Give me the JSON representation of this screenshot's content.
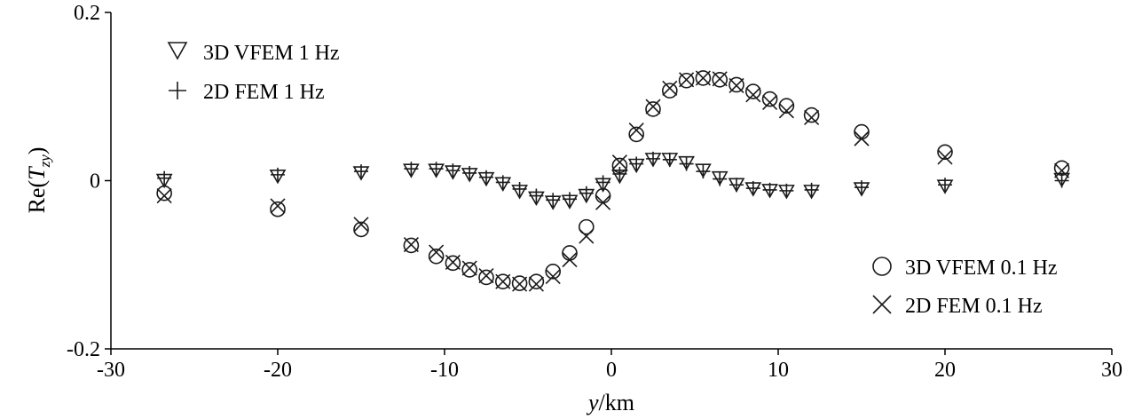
{
  "chart_data": {
    "type": "scatter",
    "title": "",
    "xlabel_italic": "y",
    "xlabel_rest": "/km",
    "ylabel_prefix": "Re(",
    "ylabel_T": "T",
    "ylabel_sub": "zy",
    "ylabel_suffix": ")",
    "xlim": [
      -30,
      30
    ],
    "ylim": [
      -0.2,
      0.2
    ],
    "xticks": [
      -30,
      -20,
      -10,
      0,
      10,
      20,
      30
    ],
    "xtick_labels": [
      "-30",
      "-20",
      "-10",
      "0",
      "10",
      "20",
      "30"
    ],
    "yticks": [
      -0.2,
      0,
      0.2
    ],
    "ytick_labels": [
      "-0.2",
      "0",
      "0.2"
    ],
    "legend_top_left": [
      "3D VFEM 1 Hz",
      "2D FEM 1 Hz"
    ],
    "legend_bottom_right": [
      "3D VFEM 0.1 Hz",
      "2D FEM 0.1 Hz"
    ],
    "series": [
      {
        "name": "3D VFEM 1 Hz",
        "marker": "triangle-down",
        "x": [
          -26.8,
          -20,
          -15,
          -12,
          -10.5,
          -9.5,
          -8.5,
          -7.5,
          -6.5,
          -5.5,
          -4.5,
          -3.5,
          -2.5,
          -1.5,
          -0.5,
          0.5,
          1.5,
          2.5,
          3.5,
          4.5,
          5.5,
          6.5,
          7.5,
          8.5,
          9.5,
          10.5,
          12,
          15,
          20,
          27
        ],
        "y": [
          0.001,
          0.006,
          0.01,
          0.013,
          0.013,
          0.011,
          0.008,
          0.003,
          -0.003,
          -0.012,
          -0.02,
          -0.025,
          -0.024,
          -0.017,
          -0.004,
          0.006,
          0.019,
          0.026,
          0.026,
          0.022,
          0.013,
          0.004,
          -0.004,
          -0.009,
          -0.011,
          -0.012,
          -0.012,
          -0.009,
          -0.006,
          0.002
        ]
      },
      {
        "name": "2D FEM 1 Hz",
        "marker": "plus",
        "x": [
          -26.8,
          -20,
          -15,
          -12,
          -10.5,
          -9.5,
          -8.5,
          -7.5,
          -6.5,
          -5.5,
          -4.5,
          -3.5,
          -2.5,
          -1.5,
          -0.5,
          0.5,
          1.5,
          2.5,
          3.5,
          4.5,
          5.5,
          6.5,
          7.5,
          8.5,
          9.5,
          10.5,
          12,
          15,
          20,
          27
        ],
        "y": [
          0.003,
          0.007,
          0.011,
          0.014,
          0.014,
          0.012,
          0.009,
          0.004,
          -0.002,
          -0.01,
          -0.018,
          -0.023,
          -0.022,
          -0.015,
          -0.002,
          0.008,
          0.02,
          0.026,
          0.025,
          0.02,
          0.011,
          0.002,
          -0.005,
          -0.009,
          -0.011,
          -0.012,
          -0.011,
          -0.008,
          -0.005,
          0.0
        ]
      },
      {
        "name": "3D VFEM 0.1 Hz",
        "marker": "circle",
        "x": [
          -26.8,
          -20,
          -15,
          -12,
          -10.5,
          -9.5,
          -8.5,
          -7.5,
          -6.5,
          -5.5,
          -4.5,
          -3.5,
          -2.5,
          -1.5,
          -0.5,
          0.5,
          1.5,
          2.5,
          3.5,
          4.5,
          5.5,
          6.5,
          7.5,
          8.5,
          9.5,
          10.5,
          12,
          15,
          20,
          27
        ],
        "y": [
          -0.015,
          -0.034,
          -0.058,
          -0.077,
          -0.09,
          -0.098,
          -0.106,
          -0.115,
          -0.12,
          -0.122,
          -0.12,
          -0.108,
          -0.086,
          -0.055,
          -0.018,
          0.018,
          0.055,
          0.085,
          0.107,
          0.119,
          0.122,
          0.12,
          0.114,
          0.106,
          0.097,
          0.089,
          0.078,
          0.058,
          0.034,
          0.015
        ]
      },
      {
        "name": "2D FEM 0.1 Hz",
        "marker": "x",
        "x": [
          -26.8,
          -20,
          -15,
          -12,
          -10.5,
          -9.5,
          -8.5,
          -7.5,
          -6.5,
          -5.5,
          -4.5,
          -3.5,
          -2.5,
          -1.5,
          -0.5,
          0.5,
          1.5,
          2.5,
          3.5,
          4.5,
          5.5,
          6.5,
          7.5,
          8.5,
          9.5,
          10.5,
          12,
          15,
          20,
          27
        ],
        "y": [
          -0.018,
          -0.03,
          -0.052,
          -0.076,
          -0.085,
          -0.097,
          -0.104,
          -0.113,
          -0.12,
          -0.123,
          -0.123,
          -0.114,
          -0.094,
          -0.066,
          -0.026,
          0.022,
          0.06,
          0.088,
          0.11,
          0.12,
          0.122,
          0.121,
          0.113,
          0.102,
          0.093,
          0.083,
          0.075,
          0.05,
          0.028,
          0.012
        ]
      }
    ]
  }
}
